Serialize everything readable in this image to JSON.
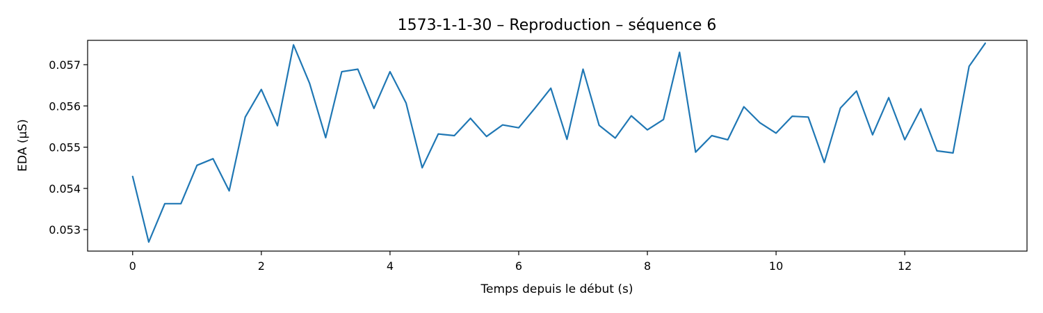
{
  "chart_data": {
    "type": "line",
    "title": "1573-1-1-30 – Reproduction – séquence 6",
    "xlabel": "Temps depuis le début (s)",
    "ylabel": "EDA (µS)",
    "xlim": [
      -0.7,
      13.9
    ],
    "ylim": [
      0.05248,
      0.05759
    ],
    "xticks": [
      0,
      2,
      4,
      6,
      8,
      10,
      12
    ],
    "yticks": [
      0.053,
      0.054,
      0.055,
      0.056,
      0.057
    ],
    "xtick_labels": [
      "0",
      "2",
      "4",
      "6",
      "8",
      "10",
      "12"
    ],
    "ytick_labels": [
      "0.053",
      "0.054",
      "0.055",
      "0.056",
      "0.057"
    ],
    "grid": false,
    "series": [
      {
        "color": "#1f77b4",
        "x": [
          0,
          0.25,
          0.5,
          0.75,
          1.0,
          1.25,
          1.5,
          1.75,
          2.0,
          2.25,
          2.5,
          2.75,
          3.0,
          3.25,
          3.5,
          3.75,
          4.0,
          4.25,
          4.5,
          4.75,
          5.0,
          5.25,
          5.5,
          5.75,
          6.0,
          6.25,
          6.5,
          6.75,
          7.0,
          7.25,
          7.5,
          7.75,
          8.0,
          8.25,
          8.5,
          8.75,
          9.0,
          9.25,
          9.5,
          9.75,
          10.0,
          10.25,
          10.5,
          10.75,
          11.0,
          11.25,
          11.5,
          11.75,
          12.0,
          12.25,
          12.5,
          12.75,
          13.0,
          13.25
        ],
        "y": [
          0.05429,
          0.0527,
          0.05363,
          0.05363,
          0.05456,
          0.05472,
          0.05394,
          0.05573,
          0.0564,
          0.05552,
          0.05748,
          0.05655,
          0.05523,
          0.05683,
          0.05689,
          0.05594,
          0.05683,
          0.05607,
          0.0545,
          0.05532,
          0.05528,
          0.0557,
          0.05526,
          0.05554,
          0.05547,
          0.05594,
          0.05643,
          0.05519,
          0.05689,
          0.05553,
          0.05522,
          0.05576,
          0.05542,
          0.05567,
          0.0573,
          0.05488,
          0.05528,
          0.05518,
          0.05598,
          0.05559,
          0.05534,
          0.05575,
          0.05573,
          0.05463,
          0.05595,
          0.05636,
          0.0553,
          0.0562,
          0.05518,
          0.05593,
          0.05491,
          0.05486,
          0.05696,
          0.05752
        ]
      }
    ]
  }
}
